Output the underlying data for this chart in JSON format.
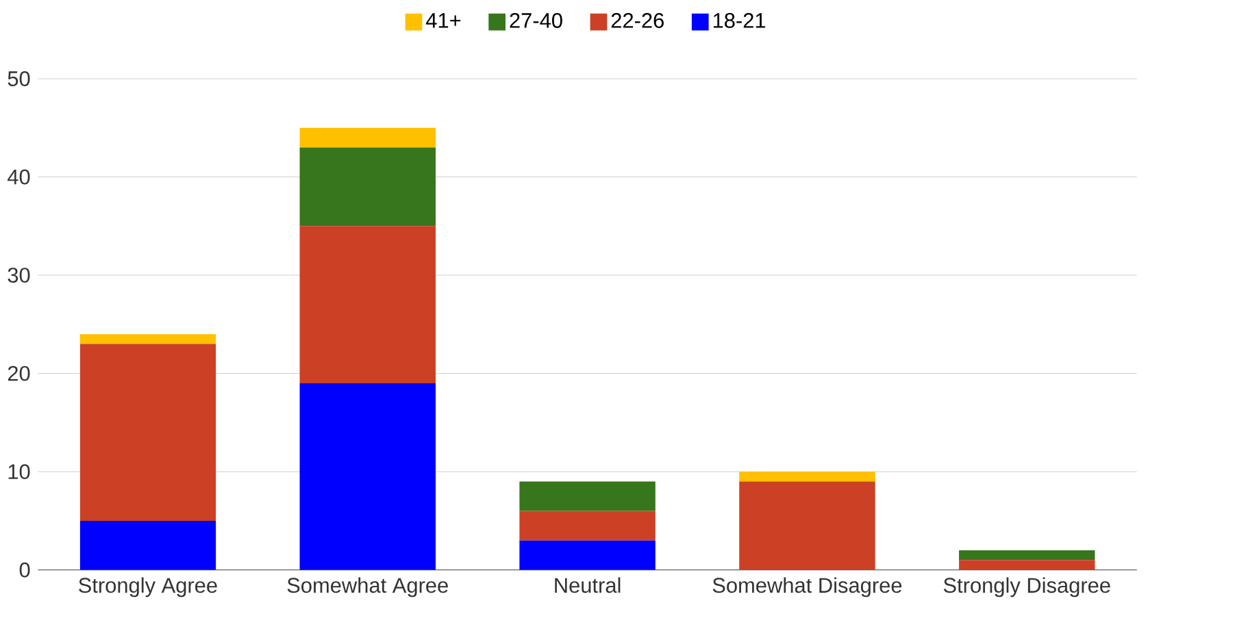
{
  "chart_data": {
    "type": "bar",
    "stacked": true,
    "categories": [
      "Strongly Agree",
      "Somewhat Agree",
      "Neutral",
      "Somewhat Disagree",
      "Strongly Disagree"
    ],
    "series": [
      {
        "name": "18-21",
        "color": "#0000ff",
        "values": [
          5,
          19,
          3,
          0,
          0
        ]
      },
      {
        "name": "22-26",
        "color": "#cc4125",
        "values": [
          18,
          16,
          3,
          9,
          1
        ]
      },
      {
        "name": "27-40",
        "color": "#38761d",
        "values": [
          0,
          8,
          3,
          0,
          1
        ]
      },
      {
        "name": "41+",
        "color": "#ffc000",
        "values": [
          1,
          2,
          0,
          1,
          0
        ]
      }
    ],
    "ylim": [
      0,
      50
    ],
    "yticks": [
      0,
      10,
      20,
      30,
      40,
      50
    ],
    "grid": "y",
    "legend": "top"
  }
}
